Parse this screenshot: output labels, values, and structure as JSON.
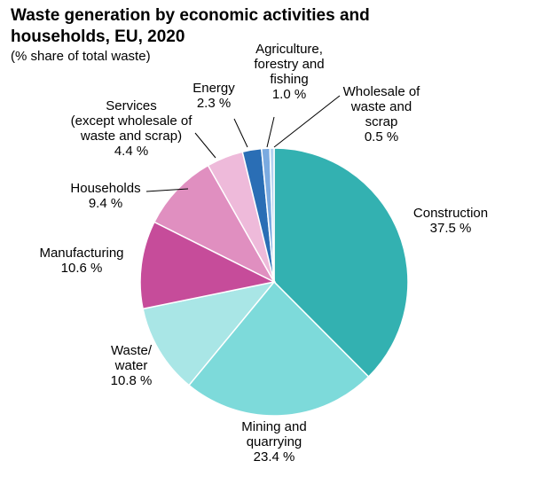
{
  "title": "Waste generation by economic activities and households, EU, 2020",
  "subtitle": "(% share of total waste)",
  "chart_data": {
    "type": "pie",
    "title": "Waste generation by economic activities and households, EU, 2020",
    "subtitle": "(% share of total waste)",
    "unit": "%",
    "slices": [
      {
        "lines": [
          "Construction",
          "37.5 %"
        ],
        "value": 37.5,
        "color": "#33b1b1"
      },
      {
        "lines": [
          "Mining and",
          "quarrying",
          "23.4 %"
        ],
        "value": 23.4,
        "color": "#7ddada"
      },
      {
        "lines": [
          "Waste/",
          "water",
          "10.8 %"
        ],
        "value": 10.8,
        "color": "#a9e6e6"
      },
      {
        "lines": [
          "Manufacturing",
          "10.6 %"
        ],
        "value": 10.6,
        "color": "#c64c9a"
      },
      {
        "lines": [
          "Households",
          "9.4 %"
        ],
        "value": 9.4,
        "color": "#e08fc0"
      },
      {
        "lines": [
          "Services",
          "(except wholesale of",
          "waste and scrap)",
          "4.4 %"
        ],
        "value": 4.4,
        "color": "#eebada"
      },
      {
        "lines": [
          "Energy",
          "2.3 %"
        ],
        "value": 2.3,
        "color": "#2a6eb5"
      },
      {
        "lines": [
          "Agriculture,",
          "forestry and",
          "fishing",
          "1.0 %"
        ],
        "value": 1.0,
        "color": "#7aaae0"
      },
      {
        "lines": [
          "Wholesale of",
          "waste and",
          "scrap",
          "0.5 %"
        ],
        "value": 0.5,
        "color": "#b4d2f0"
      }
    ]
  }
}
